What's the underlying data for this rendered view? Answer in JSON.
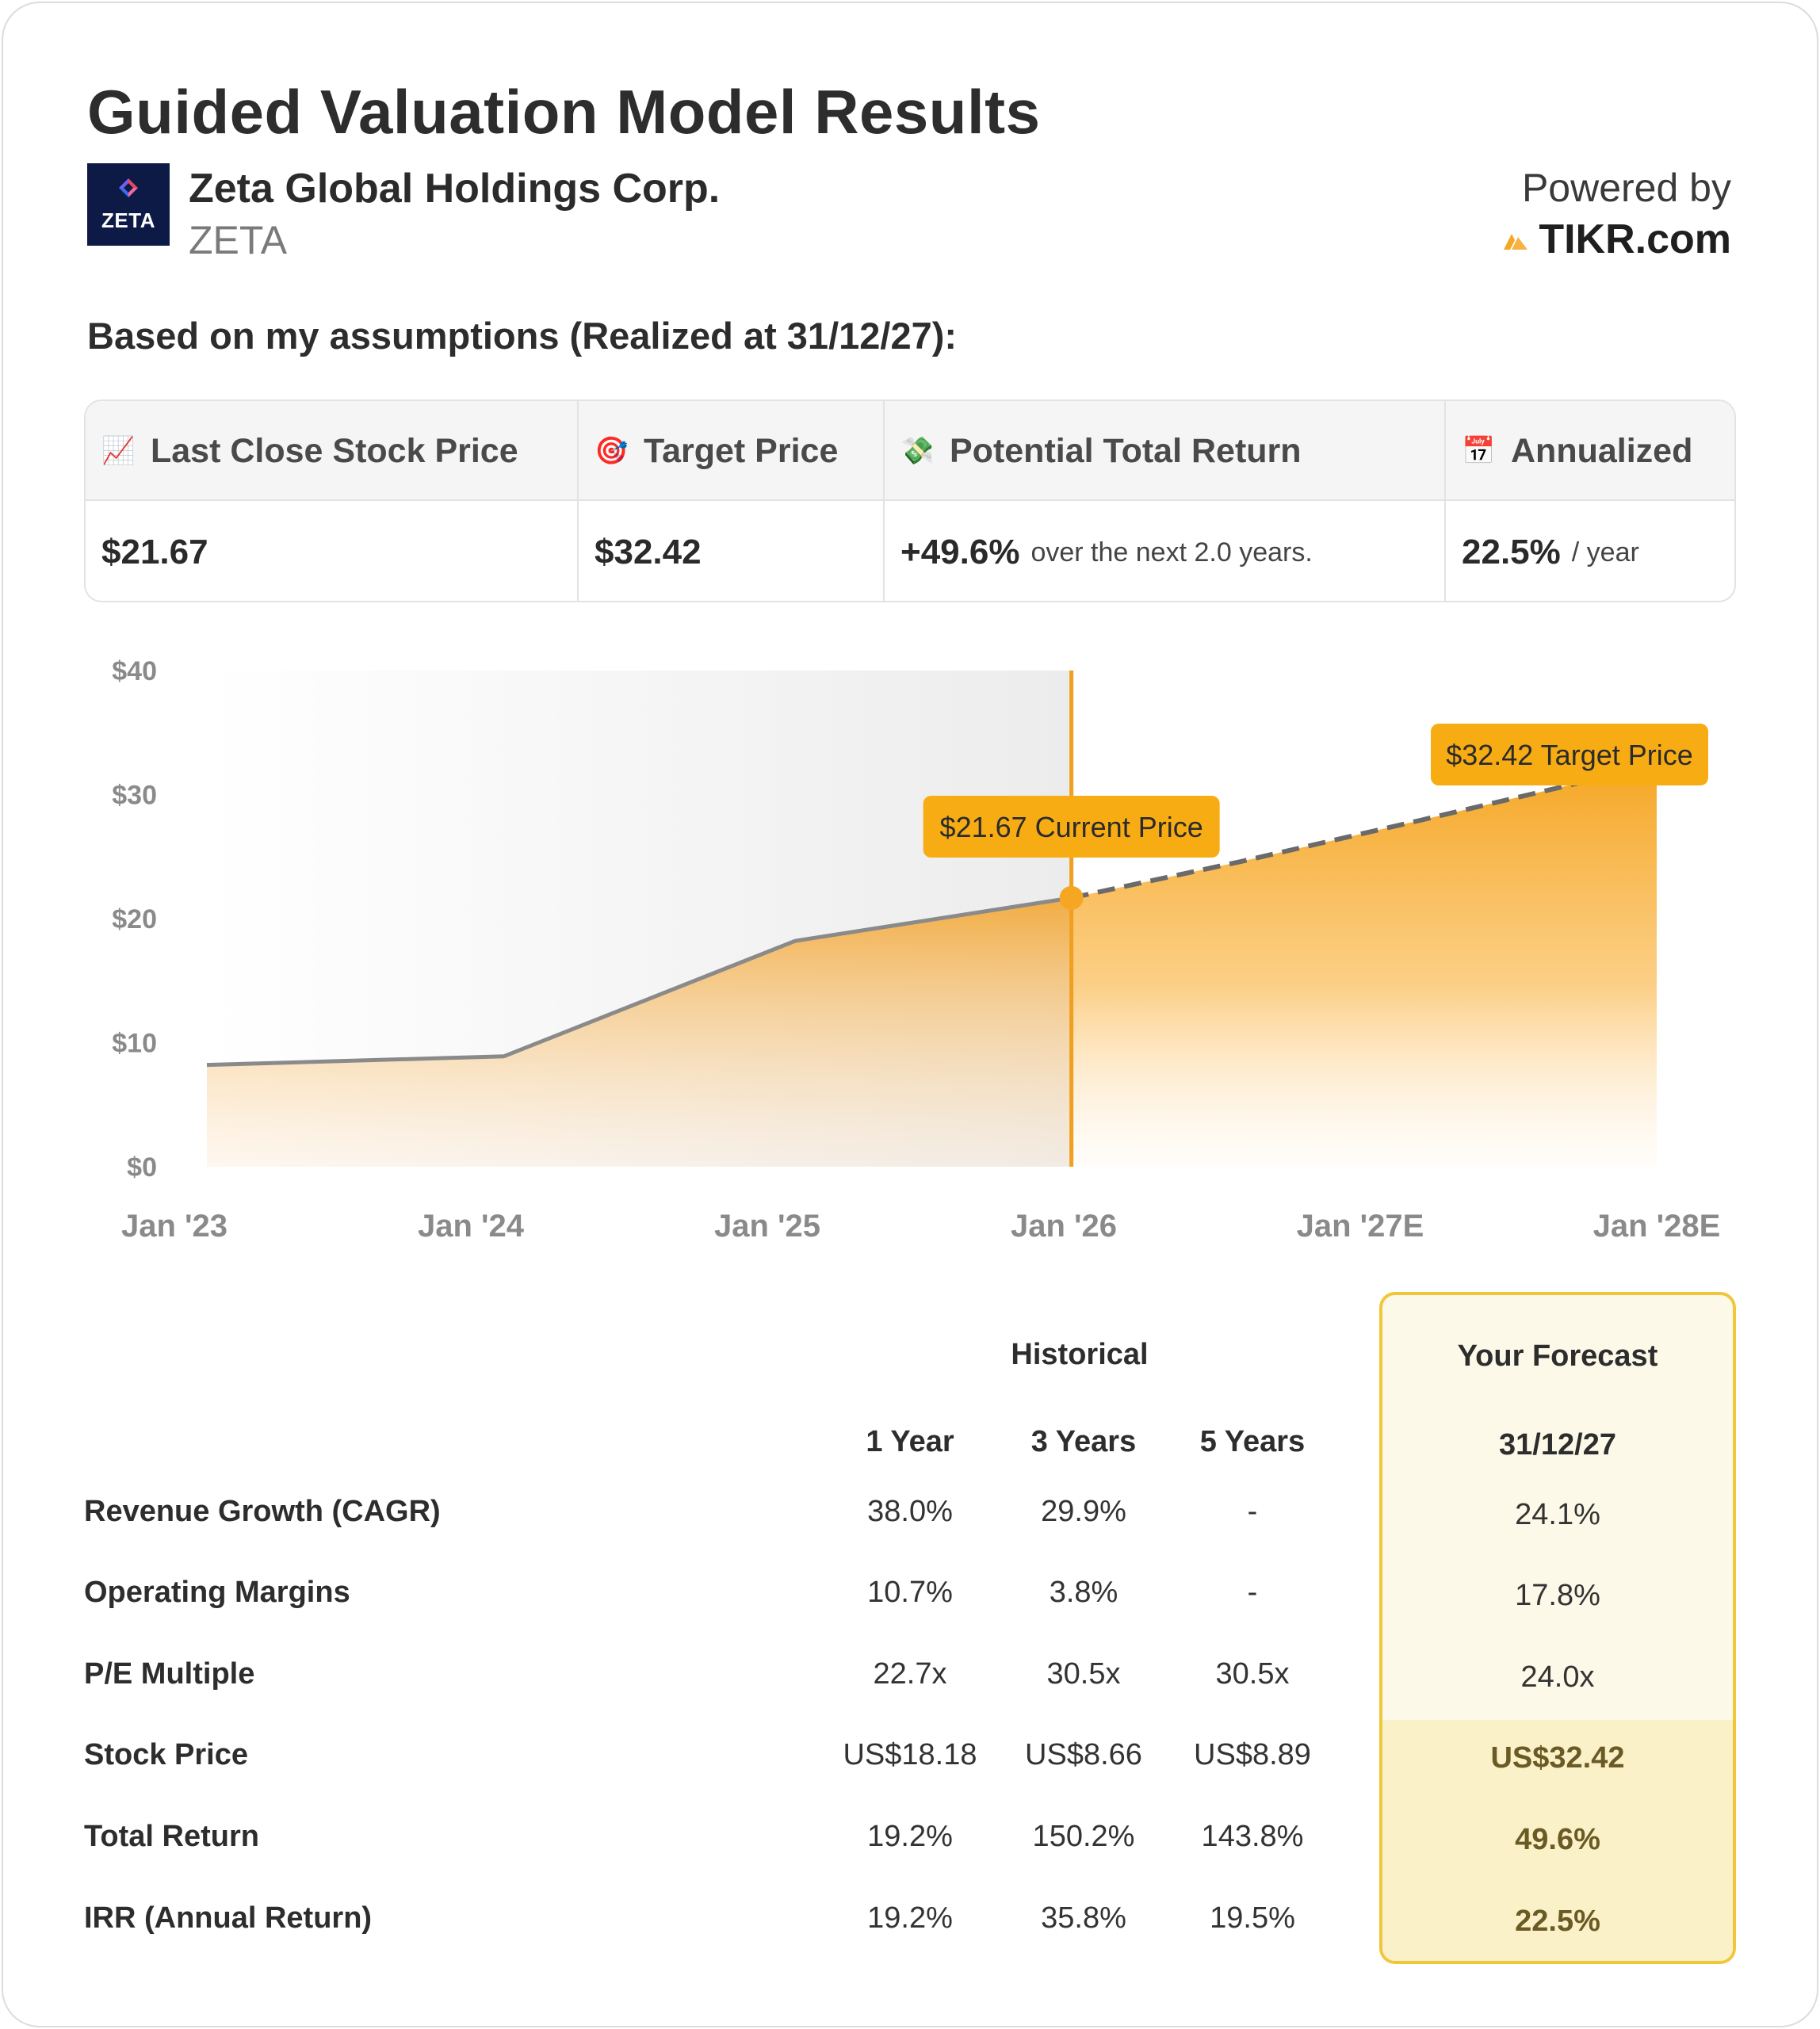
{
  "header": {
    "title": "Guided Valuation Model Results",
    "logo_text": "ZETA",
    "company_name": "Zeta Global Holdings Corp.",
    "ticker": "ZETA",
    "powered_by": "Powered by",
    "brand": "TIKR.com",
    "assumptions": "Based on my assumptions (Realized at 31/12/27):"
  },
  "summary": {
    "columns": [
      {
        "icon": "📈",
        "label": "Last Close Stock Price",
        "value": "$21.67",
        "sub": ""
      },
      {
        "icon": "🎯",
        "label": "Target Price",
        "value": "$32.42",
        "sub": ""
      },
      {
        "icon": "💸",
        "label": "Potential Total Return",
        "value": "+49.6%",
        "sub": "over the next 2.0 years."
      },
      {
        "icon": "📅",
        "label": "Annualized",
        "value": "22.5%",
        "sub": "/ year"
      }
    ]
  },
  "chart_data": {
    "type": "area",
    "x_tick_labels": [
      "Jan '23",
      "Jan '24",
      "Jan '25",
      "Jan '26",
      "Jan '27E",
      "Jan '28E"
    ],
    "y_tick_labels": [
      "$0",
      "$10",
      "$20",
      "$30",
      "$40"
    ],
    "ylim": [
      0,
      40
    ],
    "historical": {
      "x": [
        2023.12,
        2024.12,
        2025.1,
        2026.03
      ],
      "y": [
        8.2,
        8.9,
        18.2,
        21.67
      ]
    },
    "forecast": {
      "x": [
        2026.03,
        2026.6,
        2027.2,
        2028.0
      ],
      "y": [
        21.67,
        24.6,
        27.9,
        32.42
      ]
    },
    "annotations": [
      {
        "label": "$21.67 Current Price",
        "x": 2026.03,
        "y": 21.67
      },
      {
        "label": "$32.42 Target Price",
        "x": 2028.0,
        "y": 32.42
      }
    ],
    "colors": {
      "accent": "#f5a623",
      "line": "#8a8a8a",
      "vline": "#f0a020",
      "label_bg": "#f8ac14"
    }
  },
  "table": {
    "group_historical": "Historical",
    "group_forecast": "Your Forecast",
    "periods": [
      "1 Year",
      "3 Years",
      "5 Years"
    ],
    "forecast_date": "31/12/27",
    "rows": [
      {
        "label": "Revenue Growth (CAGR)",
        "values": [
          "38.0%",
          "29.9%",
          "-"
        ],
        "forecast": "24.1%"
      },
      {
        "label": "Operating Margins",
        "values": [
          "10.7%",
          "3.8%",
          "-"
        ],
        "forecast": "17.8%"
      },
      {
        "label": "P/E Multiple",
        "values": [
          "22.7x",
          "30.5x",
          "30.5x"
        ],
        "forecast": "24.0x"
      },
      {
        "label": "Stock Price",
        "values": [
          "US$18.18",
          "US$8.66",
          "US$8.89"
        ],
        "forecast": "US$32.42"
      },
      {
        "label": "Total Return",
        "values": [
          "19.2%",
          "150.2%",
          "143.8%"
        ],
        "forecast": "49.6%"
      },
      {
        "label": "IRR (Annual Return)",
        "values": [
          "19.2%",
          "35.8%",
          "19.5%"
        ],
        "forecast": "22.5%"
      }
    ]
  }
}
